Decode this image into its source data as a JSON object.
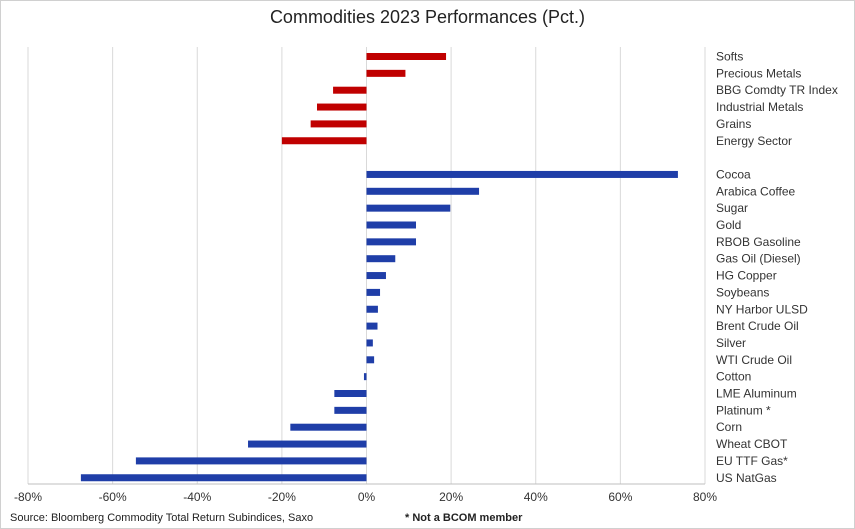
{
  "chart_data": {
    "type": "bar",
    "orientation": "horizontal",
    "title": "Commodities 2023 Performances (Pct.)",
    "xlim": [
      -80,
      80
    ],
    "xticks": [
      -80,
      -60,
      -40,
      -20,
      0,
      20,
      40,
      60,
      80
    ],
    "tick_format": "percent",
    "grid": true,
    "groups": [
      {
        "color": "#c00000",
        "categories": [
          "Softs",
          "Precious Metals",
          "BBG Comdty TR Index",
          "Industrial Metals",
          "Grains",
          "Energy Sector"
        ],
        "values": [
          18.8,
          9.2,
          -7.9,
          -11.7,
          -13.2,
          -20.0
        ]
      },
      {
        "color": "#1f3ea8",
        "categories": [
          "Cocoa",
          "Arabica Coffee",
          "Sugar",
          "Gold",
          "RBOB Gasoline",
          "Gas Oil (Diesel)",
          "HG Copper",
          "Soybeans",
          "NY Harbor ULSD",
          "Brent Crude Oil",
          "Silver",
          "WTI Crude Oil",
          "Cotton",
          "LME Aluminum",
          "Platinum *",
          "Corn",
          "Wheat CBOT",
          "EU TTF Gas*",
          "US NatGas"
        ],
        "values": [
          73.6,
          26.6,
          19.8,
          11.7,
          11.7,
          6.8,
          4.6,
          3.2,
          2.7,
          2.6,
          1.5,
          1.8,
          -0.6,
          -7.6,
          -7.6,
          -18.0,
          -28.0,
          -54.5,
          -67.5
        ]
      }
    ]
  },
  "footer": {
    "source": "Source: Bloomberg Commodity Total Return Subindices, Saxo",
    "note": "* Not a BCOM member"
  }
}
